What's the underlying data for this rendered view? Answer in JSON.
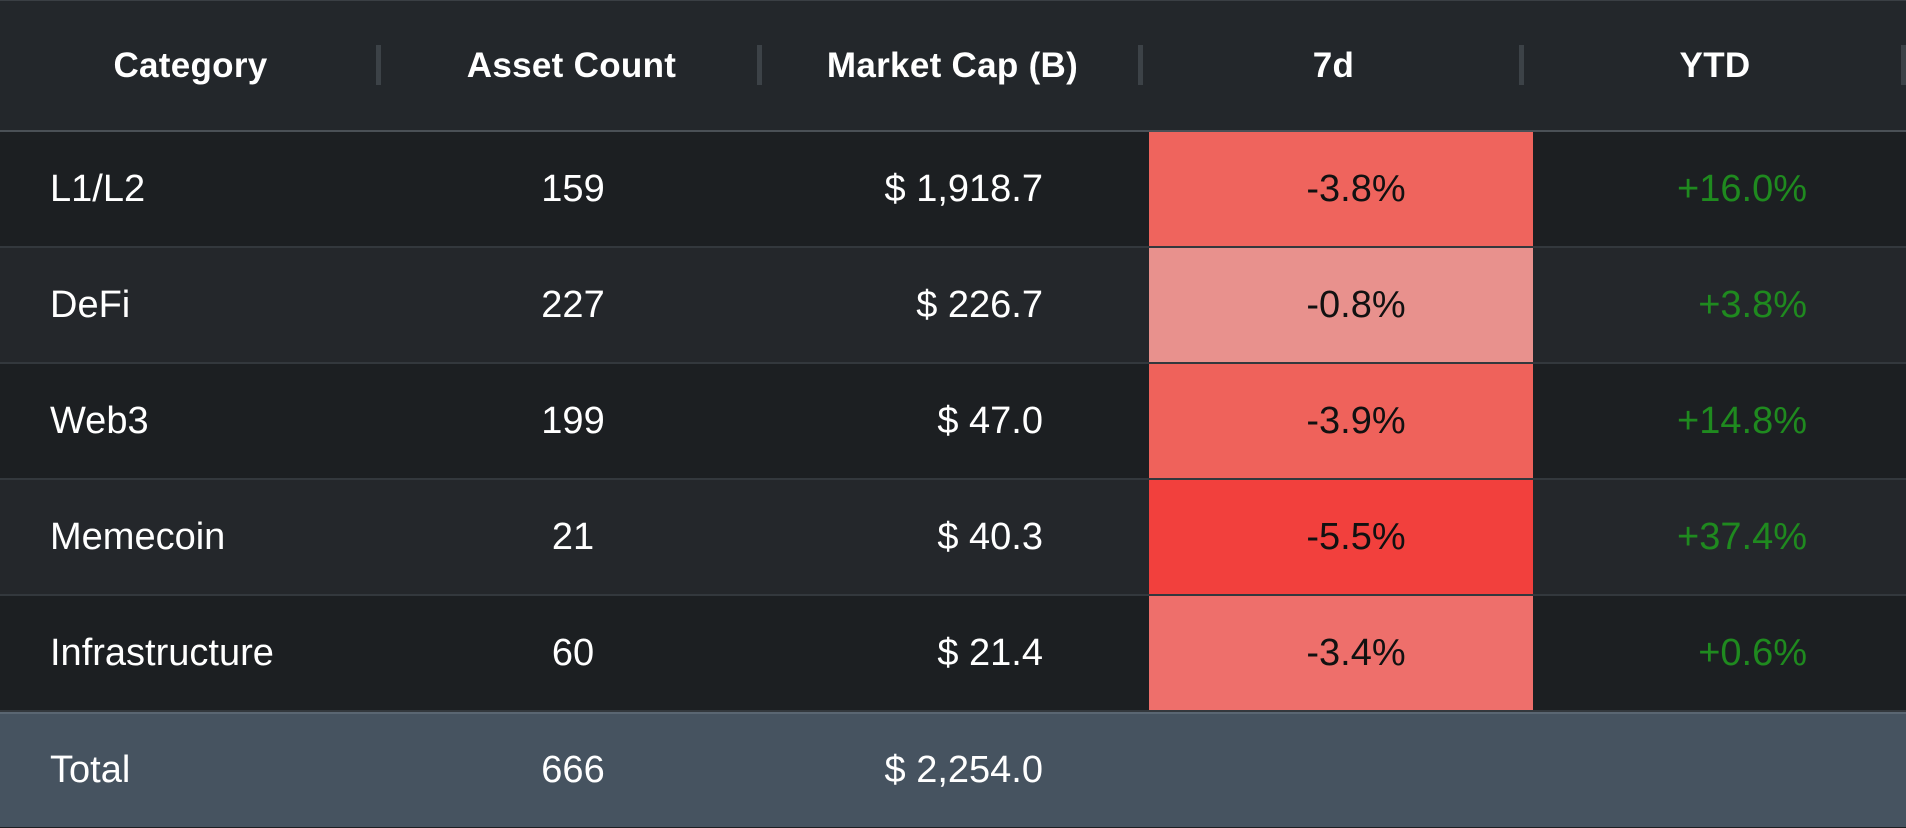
{
  "table": {
    "headers": [
      "Category",
      "Asset Count",
      "Market Cap (B)",
      "7d",
      "YTD"
    ],
    "rows": [
      {
        "category": "L1/L2",
        "asset_count": "159",
        "market_cap": "$ 1,918.7",
        "d7": "-3.8%",
        "ytd": "+16.0%",
        "d7_color": "#ef645d"
      },
      {
        "category": "DeFi",
        "asset_count": "227",
        "market_cap": "$ 226.7",
        "d7": "-0.8%",
        "ytd": "+3.8%",
        "d7_color": "#e8918d"
      },
      {
        "category": "Web3",
        "asset_count": "199",
        "market_cap": "$ 47.0",
        "d7": "-3.9%",
        "ytd": "+14.8%",
        "d7_color": "#ef625b"
      },
      {
        "category": "Memecoin",
        "asset_count": "21",
        "market_cap": "$ 40.3",
        "d7": "-5.5%",
        "ytd": "+37.4%",
        "d7_color": "#f2403d"
      },
      {
        "category": "Infrastructure",
        "asset_count": "60",
        "market_cap": "$ 21.4",
        "d7": "-3.4%",
        "ytd": "+0.6%",
        "d7_color": "#ee6f6b"
      }
    ],
    "total": {
      "label": "Total",
      "asset_count": "666",
      "market_cap": "$ 2,254.0"
    }
  },
  "colors": {
    "positive_text": "#1f8a1f",
    "background": "#1c1f22",
    "header_bg": "#23272b",
    "total_bg": "#465360"
  }
}
